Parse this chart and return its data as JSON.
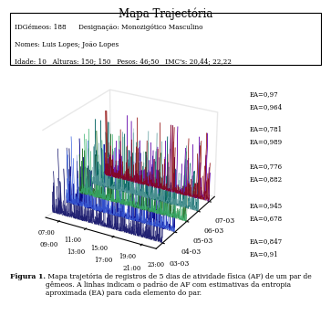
{
  "title": "Mapa Trajectória",
  "info_lines": [
    "IDGémeos: 188      Designação: Monozigótico Masculino",
    "Nomes: Luis Lopes; João Lopes",
    "Idade: 10   Alturas: 150; 150   Pesos: 46;50   IMC's: 20,44; 22,22"
  ],
  "day_labels": [
    "03-03",
    "04-03",
    "05-03",
    "06-03",
    "07-03"
  ],
  "time_ticks_odd": [
    "09:00",
    "13:00",
    "17:00",
    "21:00"
  ],
  "time_ticks_even": [
    "07:00",
    "11:00",
    "15:00",
    "19:00",
    "23:00"
  ],
  "ea_labels_top": [
    "EA=0,847",
    "EA=0,945",
    "EA=0,776",
    "EA=0,781",
    "EA=0,97"
  ],
  "ea_labels_bot": [
    "EA=0,91",
    "EA=0,678",
    "EA=0,882",
    "EA=0,989",
    "EA=0,964"
  ],
  "colors": [
    [
      "#6a0dad",
      "#8b0000"
    ],
    [
      "#006666",
      "#006666"
    ],
    [
      "#1a6b1a",
      "#2e8b57"
    ],
    [
      "#00004d",
      "#00004d"
    ],
    [
      "#00004d",
      "#00004d"
    ]
  ],
  "caption_bold": "Figura 1.",
  "caption_rest": " Mapa trajetória de registros de 5 dias de atividade física (AF) de um par de gêmeos. A linhas indicam o padrão de AF com estimativas da entropia aproximada (EA) para cada elemento do par.",
  "bg_color": "#ffffff",
  "seed": 42
}
